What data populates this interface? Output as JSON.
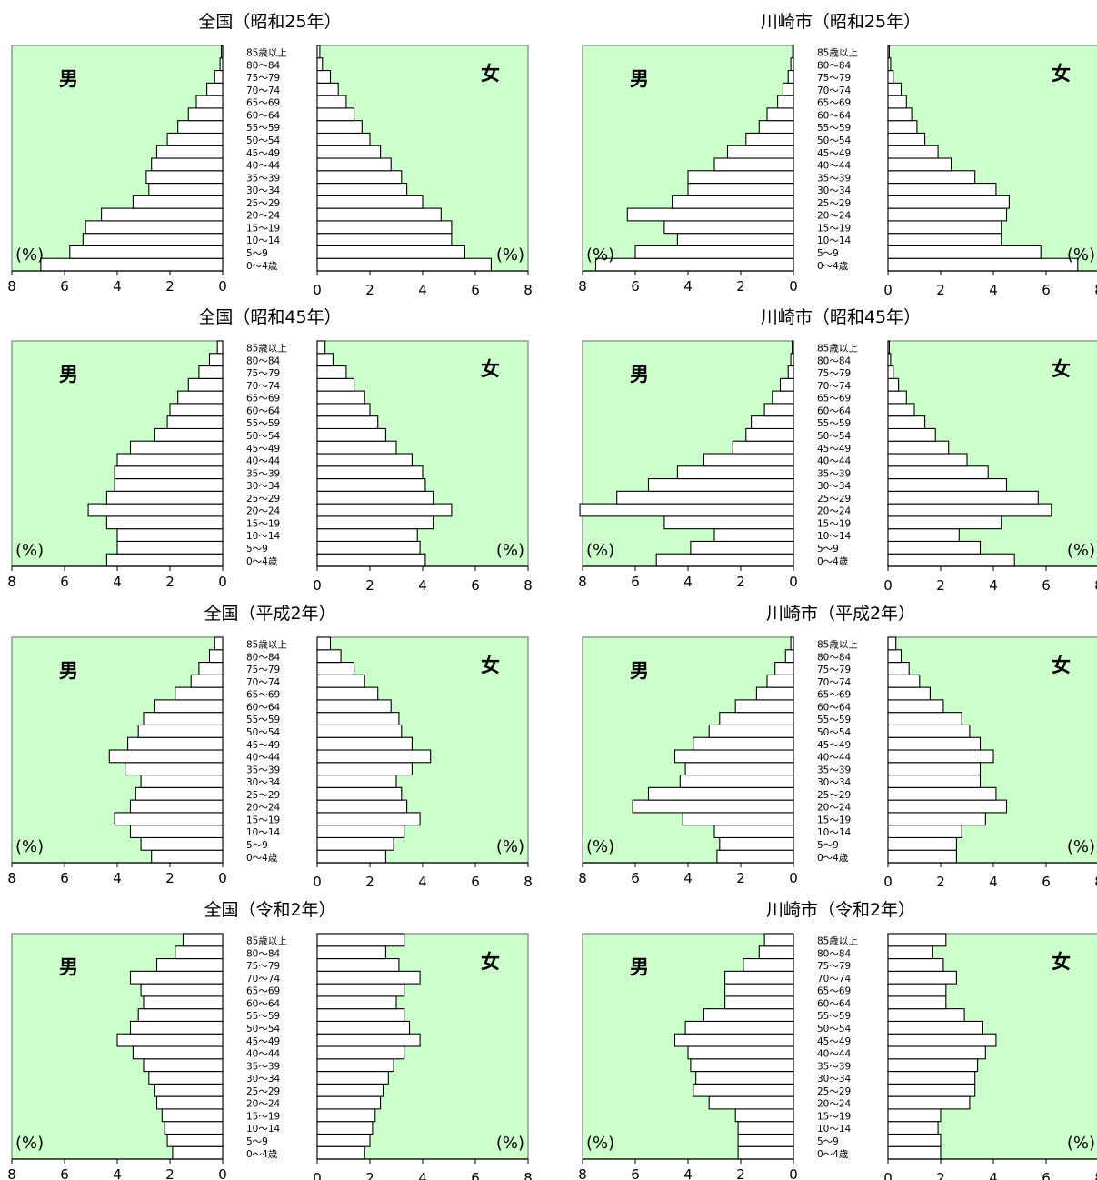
{
  "x_unit_label": "(%)",
  "male_label": "男",
  "female_label": "女",
  "age_groups": [
    "0～4歳",
    "5～9",
    "10～14",
    "15～19",
    "20～24",
    "25～29",
    "30～34",
    "35～39",
    "40～44",
    "45～49",
    "50～54",
    "55～59",
    "60～64",
    "65～69",
    "70～74",
    "75～79",
    "80～84",
    "85歳以上"
  ],
  "colors": {
    "plot_background": "#ccffcc",
    "bar_fill": "#ffffff",
    "bar_stroke": "#000000",
    "frame": "#808080"
  },
  "chart_data": [
    {
      "type": "bar",
      "title": "全国（昭和25年）",
      "xlim": [
        0,
        8
      ],
      "xticks": [
        0,
        2,
        4,
        6,
        8
      ],
      "series": [
        {
          "name": "男",
          "values": [
            6.9,
            5.8,
            5.3,
            5.2,
            4.6,
            3.4,
            2.8,
            2.9,
            2.7,
            2.5,
            2.1,
            1.7,
            1.3,
            1.0,
            0.6,
            0.3,
            0.1,
            0.05
          ]
        },
        {
          "name": "女",
          "values": [
            6.6,
            5.6,
            5.1,
            5.1,
            4.7,
            4.0,
            3.4,
            3.2,
            2.8,
            2.4,
            2.0,
            1.7,
            1.4,
            1.1,
            0.8,
            0.5,
            0.2,
            0.1
          ]
        }
      ]
    },
    {
      "type": "bar",
      "title": "川崎市（昭和25年）",
      "xlim": [
        0,
        8
      ],
      "xticks": [
        0,
        2,
        4,
        6,
        8
      ],
      "series": [
        {
          "name": "男",
          "values": [
            7.5,
            6.0,
            4.4,
            4.9,
            6.3,
            4.6,
            4.0,
            4.0,
            3.0,
            2.5,
            1.8,
            1.3,
            1.0,
            0.6,
            0.4,
            0.2,
            0.1,
            0.03
          ]
        },
        {
          "name": "女",
          "values": [
            7.2,
            5.8,
            4.3,
            4.3,
            4.5,
            4.6,
            4.1,
            3.3,
            2.4,
            1.9,
            1.4,
            1.1,
            0.9,
            0.7,
            0.5,
            0.2,
            0.1,
            0.05
          ]
        }
      ]
    },
    {
      "type": "bar",
      "title": "全国（昭和45年）",
      "xlim": [
        0,
        8
      ],
      "xticks": [
        0,
        2,
        4,
        6,
        8
      ],
      "series": [
        {
          "name": "男",
          "values": [
            4.4,
            4.0,
            4.0,
            4.4,
            5.1,
            4.4,
            4.1,
            4.1,
            4.0,
            3.5,
            2.6,
            2.1,
            2.0,
            1.7,
            1.3,
            0.9,
            0.5,
            0.2
          ]
        },
        {
          "name": "女",
          "values": [
            4.1,
            3.9,
            3.8,
            4.4,
            5.1,
            4.4,
            4.1,
            4.0,
            3.6,
            3.0,
            2.6,
            2.3,
            2.0,
            1.8,
            1.4,
            1.1,
            0.6,
            0.3
          ]
        }
      ]
    },
    {
      "type": "bar",
      "title": "川崎市（昭和45年）",
      "xlim": [
        0,
        8
      ],
      "xticks": [
        0,
        2,
        4,
        6,
        8
      ],
      "series": [
        {
          "name": "男",
          "values": [
            5.2,
            3.9,
            3.0,
            4.9,
            8.1,
            6.7,
            5.5,
            4.4,
            3.4,
            2.3,
            1.8,
            1.6,
            1.1,
            0.8,
            0.5,
            0.2,
            0.1,
            0.05
          ]
        },
        {
          "name": "女",
          "values": [
            4.8,
            3.5,
            2.7,
            4.3,
            6.2,
            5.7,
            4.5,
            3.8,
            3.0,
            2.3,
            1.8,
            1.4,
            1.0,
            0.7,
            0.4,
            0.2,
            0.1,
            0.05
          ]
        }
      ]
    },
    {
      "type": "bar",
      "title": "全国（平成2年）",
      "xlim": [
        0,
        8
      ],
      "xticks": [
        0,
        2,
        4,
        6,
        8
      ],
      "series": [
        {
          "name": "男",
          "values": [
            2.7,
            3.1,
            3.5,
            4.1,
            3.5,
            3.3,
            3.1,
            3.7,
            4.3,
            3.6,
            3.2,
            3.0,
            2.6,
            1.8,
            1.2,
            0.9,
            0.5,
            0.3
          ]
        },
        {
          "name": "女",
          "values": [
            2.6,
            2.9,
            3.3,
            3.9,
            3.4,
            3.2,
            3.0,
            3.6,
            4.3,
            3.6,
            3.2,
            3.1,
            2.8,
            2.3,
            1.8,
            1.4,
            0.9,
            0.5
          ]
        }
      ]
    },
    {
      "type": "bar",
      "title": "川崎市（平成2年）",
      "xlim": [
        0,
        8
      ],
      "xticks": [
        0,
        2,
        4,
        6,
        8
      ],
      "series": [
        {
          "name": "男",
          "values": [
            2.9,
            2.8,
            3.0,
            4.2,
            6.1,
            5.5,
            4.3,
            4.1,
            4.5,
            3.8,
            3.2,
            2.8,
            2.2,
            1.4,
            1.0,
            0.7,
            0.3,
            0.1
          ]
        },
        {
          "name": "女",
          "values": [
            2.6,
            2.6,
            2.8,
            3.7,
            4.5,
            4.1,
            3.5,
            3.5,
            4.0,
            3.5,
            3.1,
            2.8,
            2.1,
            1.6,
            1.2,
            0.8,
            0.5,
            0.3
          ]
        }
      ]
    },
    {
      "type": "bar",
      "title": "全国（令和2年）",
      "xlim": [
        0,
        8
      ],
      "xticks": [
        0,
        2,
        4,
        6,
        8
      ],
      "series": [
        {
          "name": "男",
          "values": [
            1.9,
            2.1,
            2.2,
            2.3,
            2.5,
            2.6,
            2.8,
            3.0,
            3.4,
            4.0,
            3.5,
            3.2,
            3.0,
            3.1,
            3.5,
            2.5,
            1.8,
            1.5
          ]
        },
        {
          "name": "女",
          "values": [
            1.8,
            2.0,
            2.1,
            2.2,
            2.4,
            2.5,
            2.7,
            2.9,
            3.3,
            3.9,
            3.5,
            3.3,
            3.0,
            3.3,
            3.9,
            3.1,
            2.6,
            3.3
          ]
        }
      ]
    },
    {
      "type": "bar",
      "title": "川崎市（令和2年）",
      "xlim": [
        0,
        8
      ],
      "xticks": [
        0,
        2,
        4,
        6,
        8
      ],
      "series": [
        {
          "name": "男",
          "values": [
            2.1,
            2.1,
            2.1,
            2.2,
            3.2,
            3.8,
            3.7,
            3.9,
            4.0,
            4.5,
            4.1,
            3.4,
            2.6,
            2.6,
            2.6,
            1.9,
            1.3,
            1.1
          ]
        },
        {
          "name": "女",
          "values": [
            2.0,
            2.0,
            1.9,
            2.0,
            3.1,
            3.3,
            3.3,
            3.4,
            3.7,
            4.1,
            3.6,
            2.9,
            2.2,
            2.2,
            2.6,
            2.1,
            1.7,
            2.2
          ]
        }
      ]
    }
  ]
}
